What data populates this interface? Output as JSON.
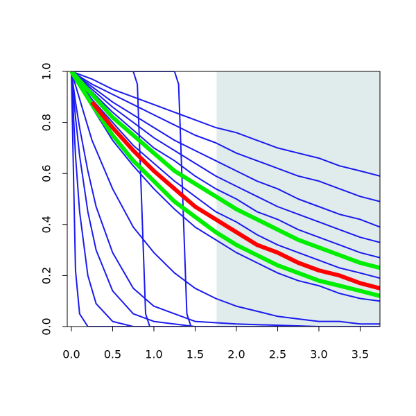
{
  "chart_data": {
    "type": "line",
    "xlim": [
      -0.05,
      3.74
    ],
    "ylim": [
      0,
      1
    ],
    "xticks": [
      {
        "value": 0,
        "label": "0.0"
      },
      0.5,
      {
        "value": 1,
        "label": "1.0"
      },
      1.5,
      {
        "value": 2,
        "label": "2.0"
      },
      2.5,
      {
        "value": 3,
        "label": "3.0"
      },
      3.5
    ],
    "yticks": [
      {
        "value": 0,
        "label": "0.0"
      },
      0.2,
      0.4,
      0.6,
      0.8,
      {
        "value": 1,
        "label": "1.0"
      }
    ],
    "shade_xmin": 1.76,
    "shade_color": "#e0ecec",
    "x": [
      0,
      0.25,
      0.5,
      0.75,
      1,
      1.25,
      1.5,
      1.75,
      2,
      2.25,
      2.5,
      2.75,
      3,
      3.25,
      3.5,
      3.74
    ],
    "series": [
      {
        "color": "#1a1aee",
        "width": 2,
        "values": [
          1,
          0.97,
          0.93,
          0.9,
          0.87,
          0.84,
          0.81,
          0.78,
          0.76,
          0.73,
          0.7,
          0.68,
          0.66,
          0.63,
          0.61,
          0.59
        ]
      },
      {
        "color": "#1a1aee",
        "width": 2,
        "values": [
          1,
          0.95,
          0.91,
          0.87,
          0.83,
          0.79,
          0.75,
          0.72,
          0.68,
          0.65,
          0.62,
          0.59,
          0.57,
          0.54,
          0.51,
          0.49
        ]
      },
      {
        "color": "#1a1aee",
        "width": 2,
        "values": [
          1,
          0.94,
          0.88,
          0.83,
          0.78,
          0.73,
          0.69,
          0.65,
          0.61,
          0.57,
          0.54,
          0.5,
          0.47,
          0.44,
          0.42,
          0.39
        ]
      },
      {
        "color": "#1a1aee",
        "width": 2,
        "values": [
          1,
          0.93,
          0.86,
          0.8,
          0.74,
          0.69,
          0.64,
          0.59,
          0.55,
          0.51,
          0.47,
          0.44,
          0.41,
          0.38,
          0.35,
          0.33
        ]
      },
      {
        "color": "#1a1aee",
        "width": 2,
        "values": [
          1,
          0.92,
          0.84,
          0.77,
          0.7,
          0.65,
          0.59,
          0.54,
          0.5,
          0.45,
          0.42,
          0.38,
          0.35,
          0.32,
          0.29,
          0.27
        ]
      },
      {
        "color": "#1a1aee",
        "width": 2,
        "values": [
          1,
          0.89,
          0.8,
          0.71,
          0.64,
          0.57,
          0.51,
          0.45,
          0.41,
          0.36,
          0.32,
          0.29,
          0.26,
          0.23,
          0.21,
          0.19
        ]
      },
      {
        "color": "#1a1aee",
        "width": 2,
        "values": [
          1,
          0.86,
          0.73,
          0.63,
          0.54,
          0.46,
          0.39,
          0.34,
          0.29,
          0.25,
          0.21,
          0.18,
          0.16,
          0.13,
          0.11,
          0.1
        ]
      },
      {
        "color": "#1a1aee",
        "width": 2,
        "values": [
          1,
          0.73,
          0.54,
          0.39,
          0.29,
          0.21,
          0.15,
          0.11,
          0.08,
          0.06,
          0.04,
          0.03,
          0.02,
          0.02,
          0.01,
          0.01
        ]
      },
      {
        "color": "#1a1aee",
        "width": 2,
        "x": [
          0,
          0.05,
          0.1,
          0.2,
          0.3,
          0.5,
          0.75,
          1,
          1.5,
          2,
          3,
          3.74
        ],
        "values": [
          1,
          0.22,
          0.05,
          0,
          0,
          0,
          0,
          0,
          0,
          0,
          0,
          0
        ]
      },
      {
        "color": "#1a1aee",
        "width": 2,
        "x": [
          0,
          0.05,
          0.1,
          0.2,
          0.3,
          0.5,
          0.75,
          1,
          1.5,
          2,
          3,
          3.74
        ],
        "values": [
          1,
          0.67,
          0.45,
          0.2,
          0.09,
          0.02,
          0,
          0,
          0,
          0,
          0,
          0
        ]
      },
      {
        "color": "#1a1aee",
        "width": 2,
        "x": [
          0,
          0.05,
          0.1,
          0.2,
          0.3,
          0.5,
          0.75,
          1,
          1.5,
          2,
          3,
          3.74
        ],
        "values": [
          1,
          0.82,
          0.67,
          0.45,
          0.3,
          0.14,
          0.05,
          0.02,
          0,
          0,
          0,
          0
        ]
      },
      {
        "color": "#1a1aee",
        "width": 2,
        "x": [
          0,
          0.05,
          0.1,
          0.2,
          0.3,
          0.5,
          0.75,
          1,
          1.5,
          2,
          3,
          3.74
        ],
        "values": [
          1,
          0.88,
          0.78,
          0.61,
          0.47,
          0.29,
          0.15,
          0.08,
          0.02,
          0.01,
          0,
          0
        ]
      },
      {
        "color": "#1a1aee",
        "width": 2,
        "x": [
          0,
          0.75,
          0.8,
          0.85,
          0.9,
          0.95,
          3.74
        ],
        "values": [
          1,
          1,
          0.95,
          0.5,
          0.05,
          0,
          0
        ]
      },
      {
        "color": "#1a1aee",
        "width": 2,
        "x": [
          0,
          1.25,
          1.3,
          1.35,
          1.4,
          1.45,
          3.74
        ],
        "values": [
          1,
          1,
          0.95,
          0.5,
          0.05,
          0,
          0
        ]
      },
      {
        "color": "#00ee00",
        "width": 6,
        "values": [
          1,
          0.91,
          0.82,
          0.75,
          0.68,
          0.61,
          0.56,
          0.51,
          0.46,
          0.42,
          0.38,
          0.34,
          0.31,
          0.28,
          0.25,
          0.23
        ]
      },
      {
        "color": "#00ee00",
        "width": 6,
        "values": [
          1,
          0.87,
          0.75,
          0.65,
          0.57,
          0.49,
          0.43,
          0.37,
          0.32,
          0.28,
          0.24,
          0.21,
          0.18,
          0.16,
          0.14,
          0.12
        ]
      },
      {
        "color": "#ff0000",
        "width": 6,
        "x": [
          0.25,
          0.5,
          0.75,
          1,
          1.25,
          1.5,
          1.75,
          2,
          2.25,
          2.5,
          2.75,
          3,
          3.25,
          3.5,
          3.74
        ],
        "values": [
          0.88,
          0.78,
          0.69,
          0.61,
          0.54,
          0.47,
          0.42,
          0.37,
          0.32,
          0.29,
          0.25,
          0.22,
          0.2,
          0.17,
          0.15
        ]
      }
    ]
  }
}
